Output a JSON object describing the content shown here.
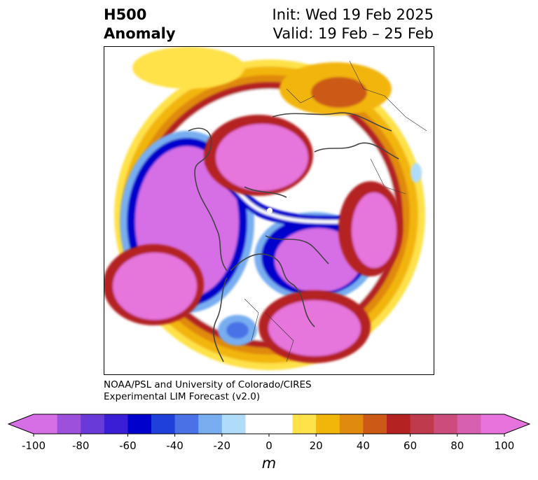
{
  "title": {
    "line1": "H500",
    "line2": "Anomaly"
  },
  "info": {
    "init": "Init: Wed 19 Feb 2025",
    "valid": "Valid: 19 Feb – 25 Feb"
  },
  "credit": {
    "line1": "NOAA/PSL and University of Colorado/CIRES",
    "line2": "Experimental LIM Forecast (v2.0)"
  },
  "colorbar": {
    "unit": "m",
    "ticks": [
      "-100",
      "-80",
      "-60",
      "-40",
      "-20",
      "0",
      "20",
      "40",
      "60",
      "80",
      "100"
    ],
    "colors": [
      "#d66ee6",
      "#9c50dc",
      "#6a3ad8",
      "#3a1ed6",
      "#0000cc",
      "#2040dc",
      "#4a72e6",
      "#78aef0",
      "#b0dcfa",
      "#ffffff",
      "#ffffff",
      "#ffe14a",
      "#f2b50a",
      "#e08a0e",
      "#cc5a16",
      "#b42222",
      "#c03a4e",
      "#cc4c7c",
      "#d860b0",
      "#e674dc"
    ]
  },
  "chart_data": {
    "type": "heatmap",
    "variable": "H500 Anomaly",
    "unit": "m",
    "levels": [
      -100,
      -90,
      -80,
      -70,
      -60,
      -50,
      -40,
      -30,
      -20,
      -10,
      0,
      10,
      20,
      30,
      40,
      50,
      60,
      70,
      80,
      90,
      100
    ]
  }
}
